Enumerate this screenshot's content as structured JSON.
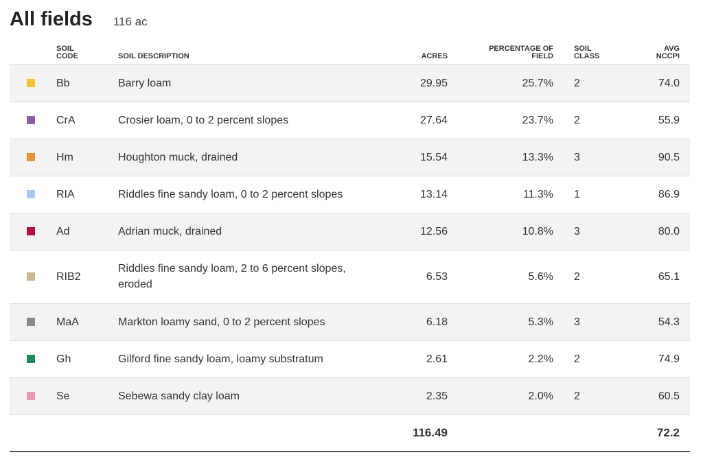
{
  "header": {
    "title": "All fields",
    "total_area": "116 ac"
  },
  "table": {
    "columns": {
      "code": [
        "SOIL",
        "CODE"
      ],
      "description": [
        "SOIL DESCRIPTION"
      ],
      "acres": [
        "ACRES"
      ],
      "percentage": [
        "PERCENTAGE OF",
        "FIELD"
      ],
      "class": [
        "SOIL",
        "CLASS"
      ],
      "nccpi": [
        "AVG",
        "NCCPI"
      ]
    },
    "rows": [
      {
        "color": "#f1c232",
        "code": "Bb",
        "description": "Barry loam",
        "acres": "29.95",
        "percentage": "25.7%",
        "class": "2",
        "nccpi": "74.0"
      },
      {
        "color": "#8e5ea2",
        "code": "CrA",
        "description": "Crosier loam, 0 to 2 percent slopes",
        "acres": "27.64",
        "percentage": "23.7%",
        "class": "2",
        "nccpi": "55.9"
      },
      {
        "color": "#e69138",
        "code": "Hm",
        "description": "Houghton muck, drained",
        "acres": "15.54",
        "percentage": "13.3%",
        "class": "3",
        "nccpi": "90.5"
      },
      {
        "color": "#a9c8ea",
        "code": "RIA",
        "description": "Riddles fine sandy loam, 0 to 2 percent slopes",
        "acres": "13.14",
        "percentage": "11.3%",
        "class": "1",
        "nccpi": "86.9"
      },
      {
        "color": "#b0143c",
        "code": "Ad",
        "description": "Adrian muck, drained",
        "acres": "12.56",
        "percentage": "10.8%",
        "class": "3",
        "nccpi": "80.0"
      },
      {
        "color": "#c9b88f",
        "code": "RIB2",
        "description": "Riddles fine sandy loam, 2 to 6 percent slopes, eroded",
        "acres": "6.53",
        "percentage": "5.6%",
        "class": "2",
        "nccpi": "65.1"
      },
      {
        "color": "#8a8a8a",
        "code": "MaA",
        "description": "Markton loamy sand, 0 to 2 percent slopes",
        "acres": "6.18",
        "percentage": "5.3%",
        "class": "3",
        "nccpi": "54.3"
      },
      {
        "color": "#1e8a5a",
        "code": "Gh",
        "description": "Gilford fine sandy loam, loamy substratum",
        "acres": "2.61",
        "percentage": "2.2%",
        "class": "2",
        "nccpi": "74.9"
      },
      {
        "color": "#e69ab4",
        "code": "Se",
        "description": "Sebewa sandy clay loam",
        "acres": "2.35",
        "percentage": "2.0%",
        "class": "2",
        "nccpi": "60.5"
      }
    ],
    "total": {
      "acres": "116.49",
      "nccpi": "72.2"
    }
  }
}
